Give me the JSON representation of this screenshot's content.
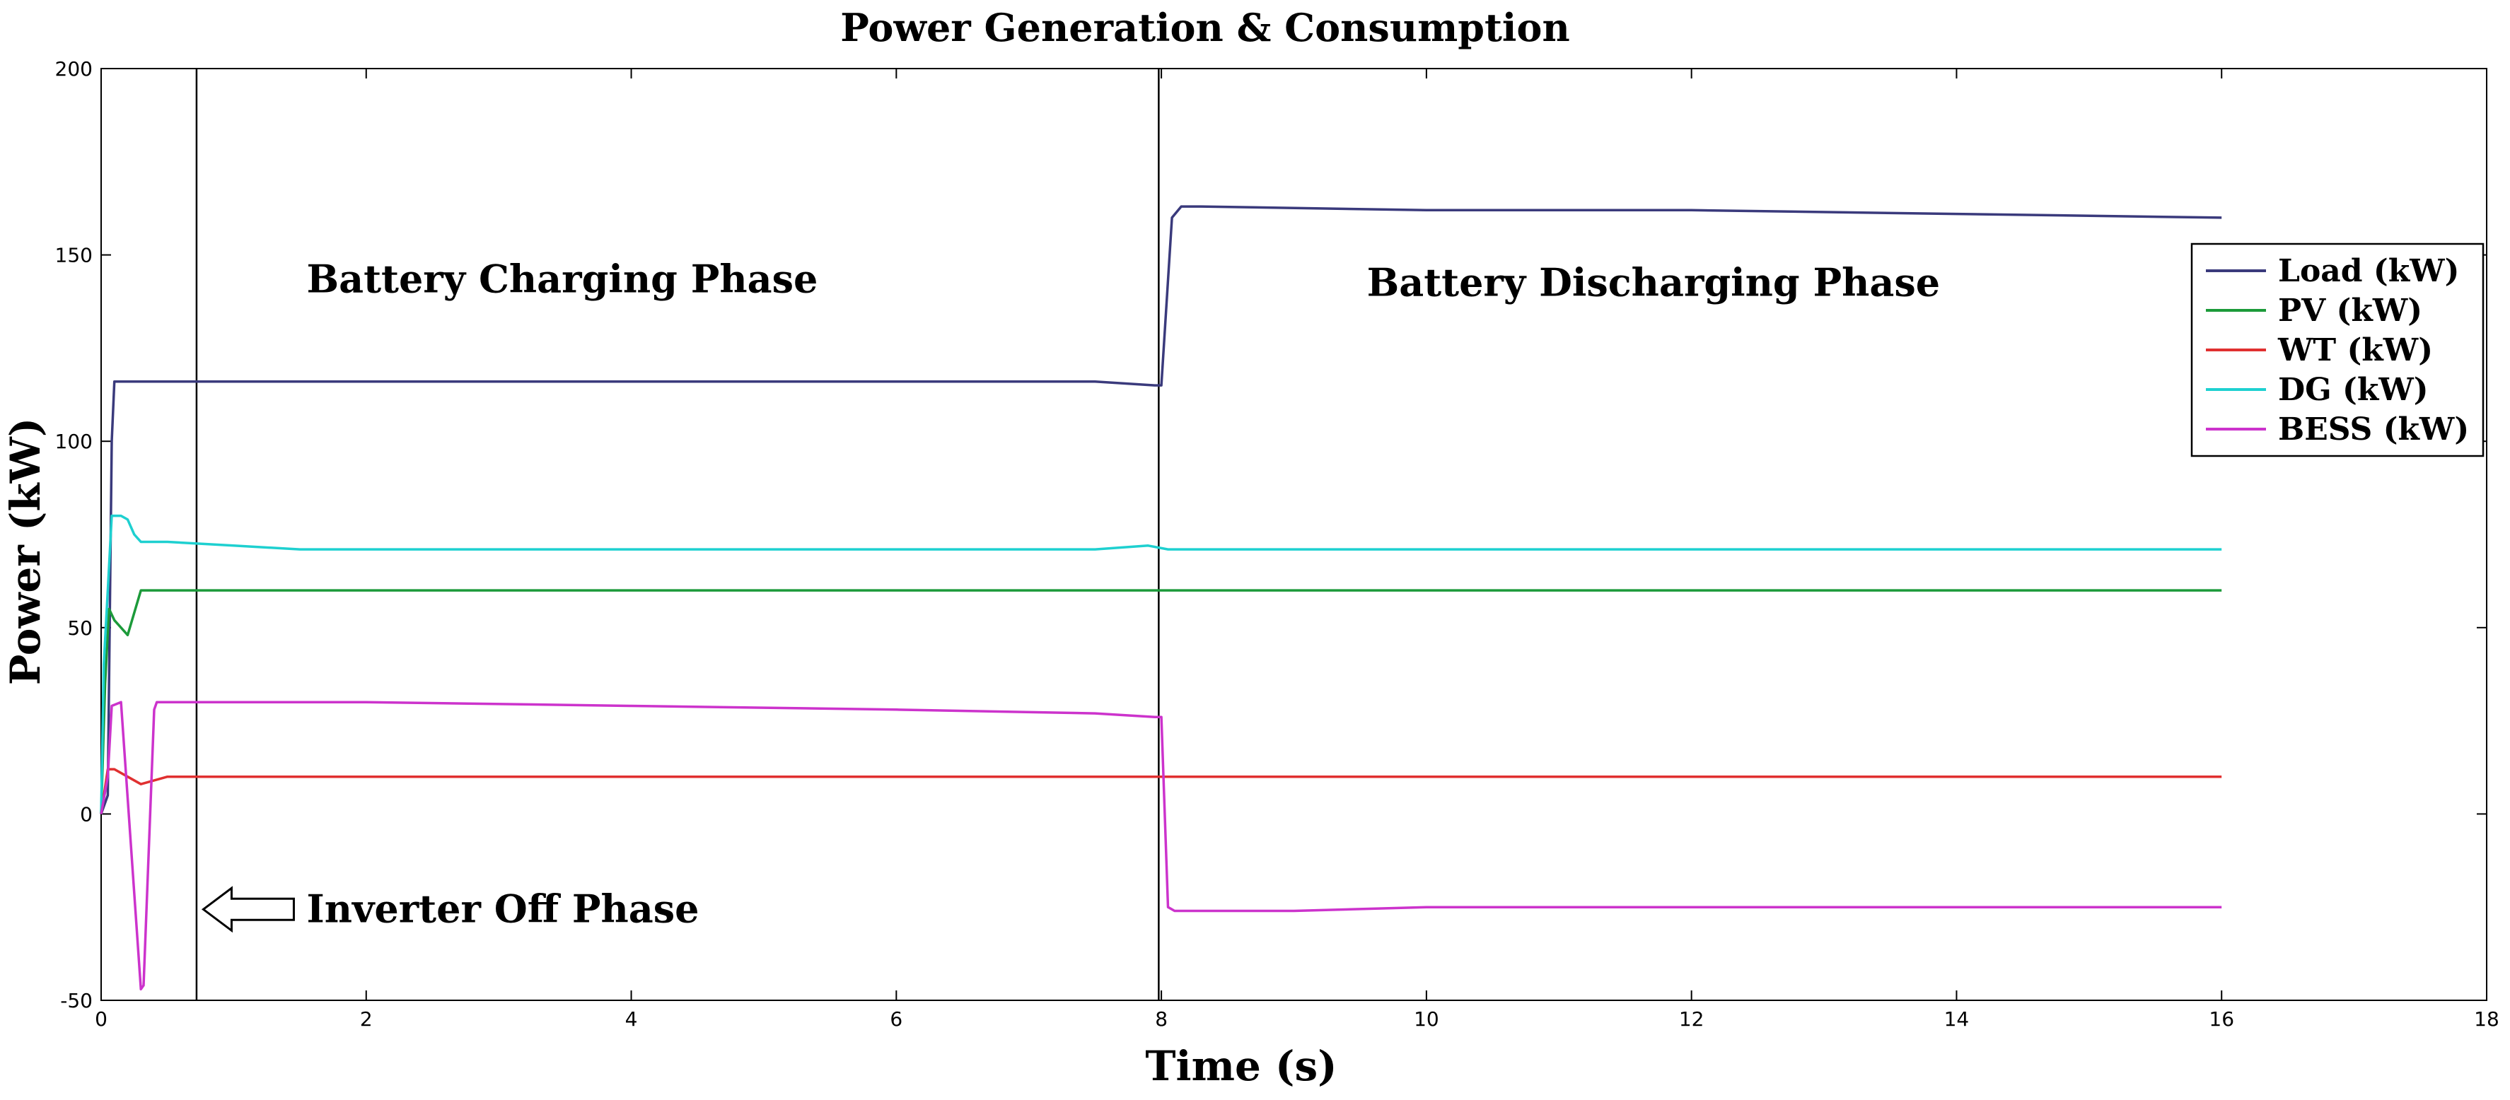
{
  "chart_data": {
    "type": "line",
    "title": "Power Generation & Consumption",
    "xlabel": "Time (s)",
    "ylabel": "Power (kW)",
    "xlim": [
      0,
      18
    ],
    "ylim": [
      -50,
      200
    ],
    "xticks": [
      0,
      2,
      4,
      6,
      8,
      10,
      12,
      14,
      16,
      18
    ],
    "yticks": [
      -50,
      0,
      50,
      100,
      150,
      200
    ],
    "grid": false,
    "legend_position": "right",
    "vlines": [
      0.72,
      7.98
    ],
    "annotations": [
      {
        "text": "Battery Charging Phase",
        "x": 1.55,
        "y": 140
      },
      {
        "text": "Battery Discharging Phase",
        "x": 9.55,
        "y": 139
      },
      {
        "text": "Inverter Off Phase",
        "x": 1.55,
        "y": -29,
        "arrow": true
      }
    ],
    "series": [
      {
        "name": "Load (kW)",
        "color": "#3a3a7c",
        "x": [
          0.0,
          0.05,
          0.08,
          0.1,
          2,
          4,
          6,
          7.5,
          7.95,
          8.0,
          8.08,
          8.15,
          8.3,
          10,
          12,
          14,
          16
        ],
        "y": [
          0,
          5,
          100,
          116,
          116,
          116,
          116,
          116,
          115,
          115,
          160,
          163,
          163,
          162,
          162,
          161,
          160
        ]
      },
      {
        "name": "PV (kW)",
        "color": "#1c9a3a",
        "x": [
          0.0,
          0.03,
          0.06,
          0.1,
          0.2,
          0.3,
          0.5,
          2,
          4,
          6,
          8,
          10,
          12,
          14,
          16
        ],
        "y": [
          0,
          35,
          55,
          52,
          48,
          60,
          60,
          60,
          60,
          60,
          60,
          60,
          60,
          60,
          60
        ]
      },
      {
        "name": "WT (kW)",
        "color": "#e03030",
        "x": [
          0.0,
          0.05,
          0.1,
          0.2,
          0.3,
          0.5,
          1,
          2,
          4,
          6,
          8,
          10,
          12,
          14,
          16
        ],
        "y": [
          0,
          12,
          12,
          10,
          8,
          10,
          10,
          10,
          10,
          10,
          10,
          10,
          10,
          10,
          10
        ]
      },
      {
        "name": "DG (kW)",
        "color": "#1ed0d0",
        "x": [
          0.0,
          0.02,
          0.05,
          0.08,
          0.15,
          0.2,
          0.25,
          0.3,
          0.5,
          1,
          1.5,
          2,
          4,
          6,
          7.5,
          7.9,
          8.05,
          8.2,
          10,
          12,
          14,
          16
        ],
        "y": [
          0,
          40,
          60,
          80,
          80,
          79,
          75,
          73,
          73,
          72,
          71,
          71,
          71,
          71,
          71,
          72,
          71,
          71,
          71,
          71,
          71,
          71
        ]
      },
      {
        "name": "BESS (kW)",
        "color": "#cc33cc",
        "x": [
          0.0,
          0.05,
          0.08,
          0.15,
          0.3,
          0.32,
          0.4,
          0.42,
          0.5,
          1,
          2,
          4,
          6,
          7.5,
          7.95,
          8.0,
          8.05,
          8.1,
          9,
          10,
          12,
          14,
          16
        ],
        "y": [
          0,
          10,
          29,
          30,
          -47,
          -46,
          28,
          30,
          30,
          30,
          30,
          29,
          28,
          27,
          26,
          26,
          -25,
          -26,
          -26,
          -25,
          -25,
          -25,
          -25
        ]
      }
    ]
  }
}
